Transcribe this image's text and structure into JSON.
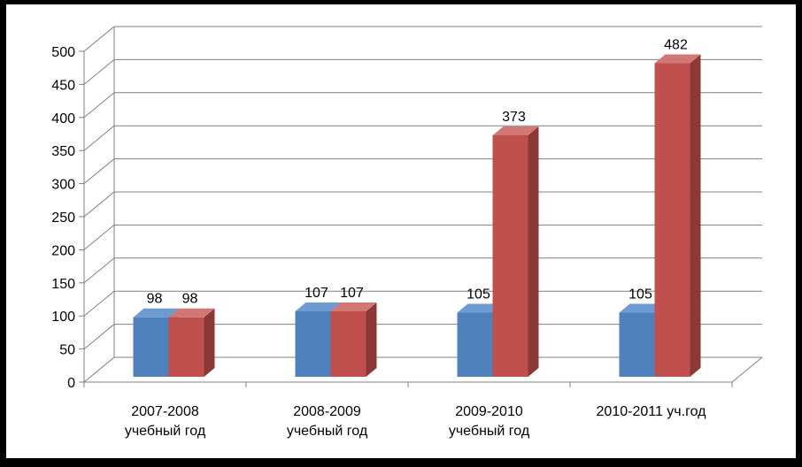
{
  "chart_data": {
    "type": "bar",
    "categories": [
      [
        "2007-2008",
        "учебный год"
      ],
      [
        "2008-2009",
        "учебный год"
      ],
      [
        "2009-2010",
        "учебный год"
      ],
      [
        "2010-2011 уч.год"
      ]
    ],
    "series": [
      {
        "values": [
          98,
          107,
          105,
          105
        ],
        "color": "#4F81BD",
        "side_color": "#365F91",
        "top_color": "#6E9BD1"
      },
      {
        "values": [
          98,
          107,
          373,
          482
        ],
        "color": "#C0504D",
        "side_color": "#8C3836",
        "top_color": "#D17875"
      }
    ],
    "ylim": [
      0,
      500
    ],
    "yticks": [
      0,
      50,
      100,
      150,
      200,
      250,
      300,
      350,
      400,
      450,
      500
    ],
    "title": "",
    "xlabel": "",
    "ylabel": "",
    "grid": true,
    "legend": false,
    "style": "3d-clustered-column"
  }
}
